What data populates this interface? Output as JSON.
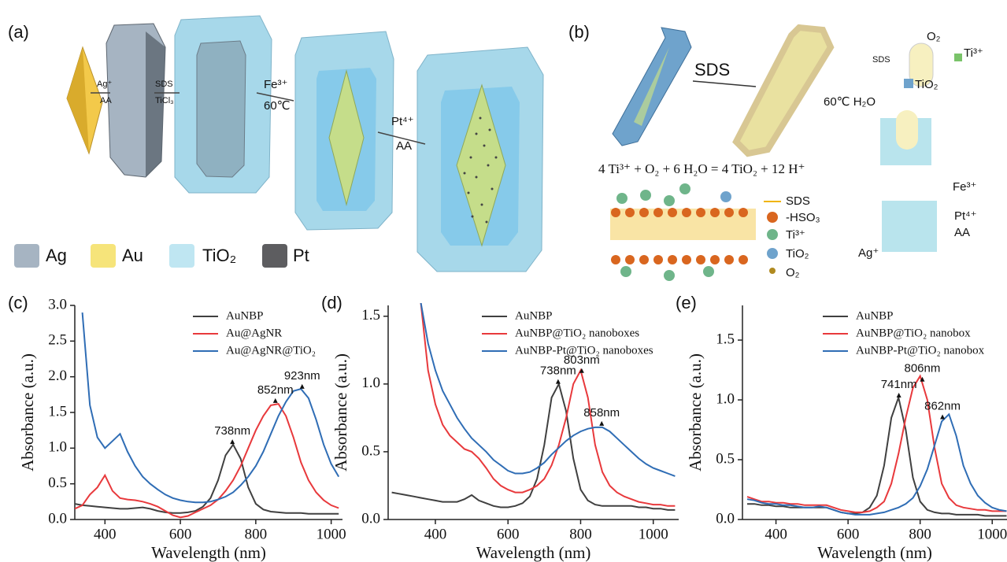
{
  "schematic_a": {
    "panel": "(a)",
    "steps": [
      "Ag⁺",
      "AA",
      "SDS",
      "TiCl₃",
      "Fe³⁺",
      "60℃",
      "Pt⁴⁺",
      "AA"
    ],
    "legend": [
      "Ag",
      "Au",
      "TiO₂",
      "Pt"
    ]
  },
  "schematic_b": {
    "panel": "(b)",
    "arrow": "SDS",
    "micelle": [
      "SDS",
      "O₂",
      "Ti³⁺",
      "TiO₂"
    ],
    "heat": "60℃ H₂O",
    "equation": "4 Ti³⁺ + O₂ + 6 H₂O = 4 TiO₂ + 12 H⁺",
    "key": [
      "SDS",
      "-HSO₃",
      "Ti³⁺",
      "TiO₂",
      "O₂"
    ],
    "box_labels": [
      "Fe³⁺",
      "Pt⁴⁺",
      "AA",
      "Ag⁺"
    ]
  },
  "chart_data": [
    {
      "type": "line",
      "panel": "(c)",
      "xlabel": "Wavelength (nm)",
      "ylabel": "Absorbance (a.u.)",
      "xlim": [
        320,
        1030
      ],
      "xticks": [
        400,
        600,
        800,
        1000
      ],
      "ylim": [
        0,
        3.0
      ],
      "yticks": [
        {
          "value": 0,
          "label": "0.0"
        },
        {
          "value": 0.5,
          "label": "0.5"
        },
        {
          "value": 1,
          "label": "1.0"
        },
        {
          "value": 1.5,
          "label": "1.5"
        },
        {
          "value": 2,
          "label": "2.0"
        },
        {
          "value": 2.5,
          "label": "2.5"
        },
        {
          "value": 3,
          "label": "3.0"
        }
      ],
      "x": [
        320,
        340,
        360,
        380,
        400,
        420,
        440,
        460,
        480,
        500,
        520,
        540,
        560,
        580,
        600,
        620,
        640,
        660,
        680,
        700,
        720,
        740,
        760,
        780,
        800,
        820,
        840,
        860,
        880,
        900,
        920,
        940,
        960,
        980,
        1000,
        1020
      ],
      "series": [
        {
          "name": "AuNBP",
          "color": "#404040",
          "peak": 738,
          "peak_label": "738nm",
          "values": [
            0.22,
            0.2,
            0.19,
            0.18,
            0.17,
            0.16,
            0.15,
            0.15,
            0.16,
            0.17,
            0.15,
            0.12,
            0.1,
            0.09,
            0.09,
            0.1,
            0.12,
            0.18,
            0.3,
            0.55,
            0.9,
            1.05,
            0.85,
            0.45,
            0.22,
            0.14,
            0.11,
            0.1,
            0.09,
            0.09,
            0.09,
            0.08,
            0.08,
            0.08,
            0.08,
            0.08
          ]
        },
        {
          "name": "Au@AgNR",
          "color": "#e8393c",
          "peak": 852,
          "peak_label": "852nm",
          "values": [
            0.15,
            0.2,
            0.35,
            0.45,
            0.62,
            0.4,
            0.3,
            0.28,
            0.27,
            0.25,
            0.22,
            0.18,
            0.12,
            0.06,
            0.03,
            0.05,
            0.1,
            0.15,
            0.2,
            0.28,
            0.4,
            0.55,
            0.75,
            1.0,
            1.25,
            1.45,
            1.6,
            1.62,
            1.45,
            1.15,
            0.8,
            0.55,
            0.38,
            0.27,
            0.2,
            0.16
          ]
        },
        {
          "name": "Au@AgNR@TiO₂",
          "color": "#2f6db5",
          "peak": 923,
          "peak_label": "923nm",
          "values": [
            null,
            2.9,
            1.6,
            1.15,
            1.0,
            1.1,
            1.2,
            0.95,
            0.75,
            0.6,
            0.5,
            0.42,
            0.35,
            0.3,
            0.27,
            0.25,
            0.24,
            0.24,
            0.25,
            0.28,
            0.32,
            0.38,
            0.48,
            0.6,
            0.75,
            0.95,
            1.2,
            1.45,
            1.65,
            1.8,
            1.83,
            1.7,
            1.4,
            1.05,
            0.78,
            0.6
          ]
        }
      ]
    },
    {
      "type": "line",
      "panel": "(d)",
      "xlabel": "Wavelength (nm)",
      "ylabel": "Absorbance (a.u.)",
      "xlim": [
        270,
        1070
      ],
      "xticks": [
        400,
        600,
        800,
        1000
      ],
      "ylim": [
        0,
        1.58
      ],
      "yticks": [
        {
          "value": 0,
          "label": "0.0"
        },
        {
          "value": 0.5,
          "label": "0.5"
        },
        {
          "value": 1,
          "label": "1.0"
        },
        {
          "value": 1.5,
          "label": "1.5"
        }
      ],
      "x": [
        280,
        300,
        320,
        340,
        360,
        380,
        400,
        420,
        440,
        460,
        480,
        500,
        520,
        540,
        560,
        580,
        600,
        620,
        640,
        660,
        680,
        700,
        720,
        740,
        760,
        780,
        800,
        820,
        840,
        860,
        880,
        900,
        920,
        940,
        960,
        980,
        1000,
        1020,
        1040,
        1060
      ],
      "series": [
        {
          "name": "AuNBP",
          "color": "#404040",
          "peak": 738,
          "peak_label": "738nm",
          "values": [
            0.2,
            0.19,
            0.18,
            0.17,
            0.16,
            0.15,
            0.14,
            0.13,
            0.13,
            0.13,
            0.15,
            0.18,
            0.14,
            0.12,
            0.1,
            0.09,
            0.09,
            0.1,
            0.12,
            0.17,
            0.3,
            0.55,
            0.9,
            1.0,
            0.8,
            0.45,
            0.22,
            0.14,
            0.11,
            0.1,
            0.1,
            0.1,
            0.1,
            0.1,
            0.09,
            0.09,
            0.08,
            0.08,
            0.07,
            0.07
          ]
        },
        {
          "name": "AuNBP@TiO₂ nanoboxes",
          "color": "#e8393c",
          "peak": 803,
          "peak_label": "803nm",
          "values": [
            null,
            null,
            null,
            null,
            1.6,
            1.1,
            0.85,
            0.7,
            0.62,
            0.57,
            0.52,
            0.5,
            0.45,
            0.38,
            0.3,
            0.25,
            0.22,
            0.2,
            0.2,
            0.22,
            0.25,
            0.3,
            0.4,
            0.55,
            0.75,
            1.0,
            1.1,
            0.9,
            0.55,
            0.35,
            0.25,
            0.2,
            0.17,
            0.15,
            0.13,
            0.12,
            0.11,
            0.11,
            0.1,
            0.1
          ]
        },
        {
          "name": "AuNBP-Pt@TiO₂ nanoboxes",
          "color": "#2f6db5",
          "peak": 858,
          "peak_label": "858nm",
          "values": [
            null,
            null,
            null,
            null,
            1.6,
            1.3,
            1.1,
            0.95,
            0.85,
            0.75,
            0.67,
            0.6,
            0.55,
            0.5,
            0.44,
            0.4,
            0.36,
            0.34,
            0.34,
            0.35,
            0.38,
            0.42,
            0.48,
            0.53,
            0.58,
            0.62,
            0.65,
            0.67,
            0.68,
            0.68,
            0.65,
            0.6,
            0.55,
            0.5,
            0.45,
            0.41,
            0.38,
            0.36,
            0.34,
            0.32
          ]
        }
      ]
    },
    {
      "type": "line",
      "panel": "(e)",
      "xlabel": "Wavelength (nm)",
      "ylabel": "Absorbance (a.u.)",
      "xlim": [
        307,
        1041
      ],
      "xticks": [
        400,
        600,
        800,
        1000
      ],
      "ylim": [
        0,
        1.79
      ],
      "yticks": [
        {
          "value": 0,
          "label": "0.0"
        },
        {
          "value": 0.5,
          "label": "0.5"
        },
        {
          "value": 1,
          "label": "1.0"
        },
        {
          "value": 1.5,
          "label": "1.5"
        }
      ],
      "x": [
        320,
        340,
        360,
        380,
        400,
        420,
        440,
        460,
        480,
        500,
        520,
        540,
        560,
        580,
        600,
        620,
        640,
        660,
        680,
        700,
        720,
        740,
        760,
        780,
        800,
        820,
        840,
        860,
        880,
        900,
        920,
        940,
        960,
        980,
        1000,
        1020,
        1040
      ],
      "series": [
        {
          "name": "AuNBP",
          "color": "#404040",
          "peak": 741,
          "peak_label": "741nm",
          "values": [
            0.13,
            0.13,
            0.12,
            0.12,
            0.11,
            0.11,
            0.1,
            0.1,
            0.1,
            0.1,
            0.1,
            0.1,
            0.08,
            0.06,
            0.05,
            0.05,
            0.06,
            0.1,
            0.2,
            0.45,
            0.85,
            1.02,
            0.75,
            0.35,
            0.15,
            0.08,
            0.06,
            0.05,
            0.05,
            0.04,
            0.04,
            0.04,
            0.04,
            0.03,
            0.03,
            0.03,
            0.03
          ]
        },
        {
          "name": "AuNBP@TiO₂ nanobox",
          "color": "#e8393c",
          "peak": 806,
          "peak_label": "806nm",
          "values": [
            0.19,
            0.17,
            0.15,
            0.15,
            0.14,
            0.14,
            0.13,
            0.13,
            0.12,
            0.12,
            0.12,
            0.12,
            0.1,
            0.08,
            0.07,
            0.06,
            0.06,
            0.07,
            0.1,
            0.15,
            0.3,
            0.55,
            0.85,
            1.1,
            1.2,
            1.0,
            0.6,
            0.3,
            0.18,
            0.12,
            0.1,
            0.09,
            0.08,
            0.08,
            0.07,
            0.07,
            0.07
          ]
        },
        {
          "name": "AuNBP-Pt@TiO₂ nanobox",
          "color": "#2f6db5",
          "peak": 862,
          "peak_label": "862nm",
          "values": [
            0.17,
            0.16,
            0.14,
            0.13,
            0.13,
            0.12,
            0.12,
            0.11,
            0.1,
            0.1,
            0.11,
            0.1,
            0.08,
            0.06,
            0.05,
            0.04,
            0.04,
            0.04,
            0.05,
            0.06,
            0.08,
            0.1,
            0.13,
            0.18,
            0.28,
            0.42,
            0.62,
            0.82,
            0.88,
            0.7,
            0.45,
            0.3,
            0.2,
            0.14,
            0.1,
            0.08,
            0.07
          ]
        }
      ]
    }
  ]
}
